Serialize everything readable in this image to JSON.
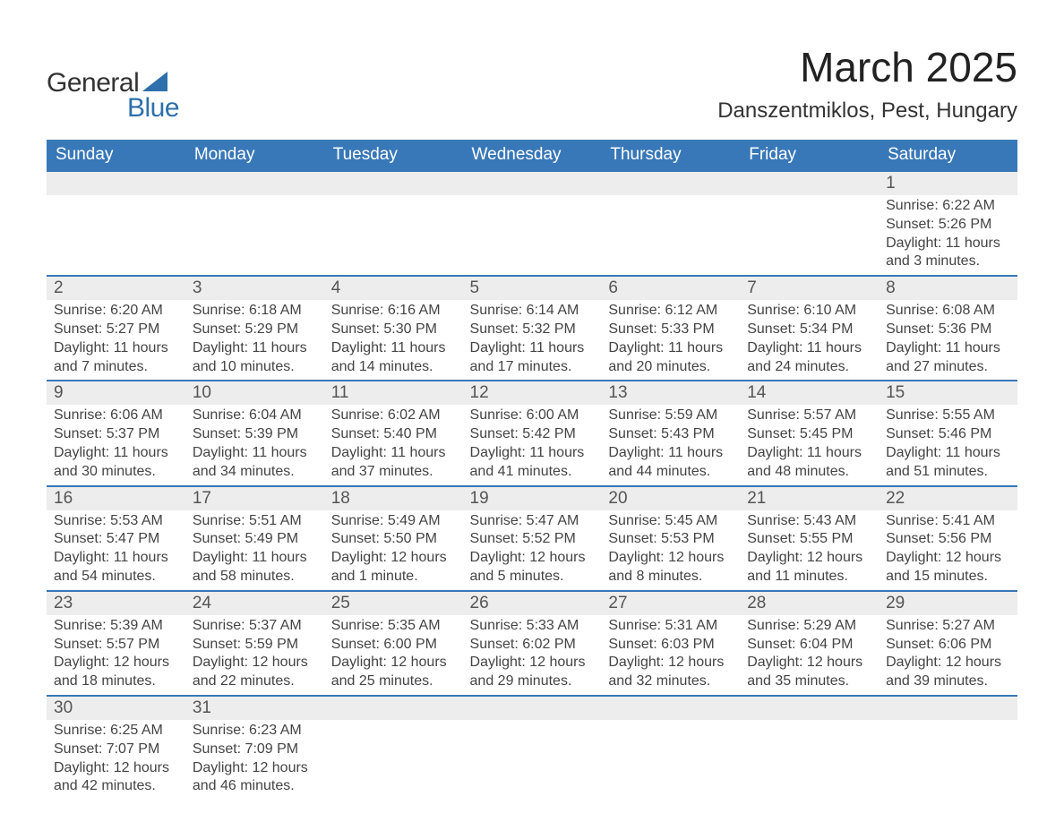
{
  "logo": {
    "word1": "General",
    "word2": "Blue",
    "triangle_color": "#2f6fab"
  },
  "header": {
    "month_title": "March 2025",
    "location": "Danszentmiklos, Pest, Hungary"
  },
  "calendar": {
    "type": "table",
    "columns": [
      "Sunday",
      "Monday",
      "Tuesday",
      "Wednesday",
      "Thursday",
      "Friday",
      "Saturday"
    ],
    "header_bg": "#3878b8",
    "header_text_color": "#ffffff",
    "daynum_bg": "#ededed",
    "row_border_color": "#3878b8",
    "text_color": "#444444",
    "fontsize_header": 19,
    "fontsize_daynum": 19,
    "fontsize_data": 16,
    "weeks": [
      [
        null,
        null,
        null,
        null,
        null,
        null,
        {
          "n": "1",
          "sunrise": "Sunrise: 6:22 AM",
          "sunset": "Sunset: 5:26 PM",
          "daylight1": "Daylight: 11 hours",
          "daylight2": "and 3 minutes."
        }
      ],
      [
        {
          "n": "2",
          "sunrise": "Sunrise: 6:20 AM",
          "sunset": "Sunset: 5:27 PM",
          "daylight1": "Daylight: 11 hours",
          "daylight2": "and 7 minutes."
        },
        {
          "n": "3",
          "sunrise": "Sunrise: 6:18 AM",
          "sunset": "Sunset: 5:29 PM",
          "daylight1": "Daylight: 11 hours",
          "daylight2": "and 10 minutes."
        },
        {
          "n": "4",
          "sunrise": "Sunrise: 6:16 AM",
          "sunset": "Sunset: 5:30 PM",
          "daylight1": "Daylight: 11 hours",
          "daylight2": "and 14 minutes."
        },
        {
          "n": "5",
          "sunrise": "Sunrise: 6:14 AM",
          "sunset": "Sunset: 5:32 PM",
          "daylight1": "Daylight: 11 hours",
          "daylight2": "and 17 minutes."
        },
        {
          "n": "6",
          "sunrise": "Sunrise: 6:12 AM",
          "sunset": "Sunset: 5:33 PM",
          "daylight1": "Daylight: 11 hours",
          "daylight2": "and 20 minutes."
        },
        {
          "n": "7",
          "sunrise": "Sunrise: 6:10 AM",
          "sunset": "Sunset: 5:34 PM",
          "daylight1": "Daylight: 11 hours",
          "daylight2": "and 24 minutes."
        },
        {
          "n": "8",
          "sunrise": "Sunrise: 6:08 AM",
          "sunset": "Sunset: 5:36 PM",
          "daylight1": "Daylight: 11 hours",
          "daylight2": "and 27 minutes."
        }
      ],
      [
        {
          "n": "9",
          "sunrise": "Sunrise: 6:06 AM",
          "sunset": "Sunset: 5:37 PM",
          "daylight1": "Daylight: 11 hours",
          "daylight2": "and 30 minutes."
        },
        {
          "n": "10",
          "sunrise": "Sunrise: 6:04 AM",
          "sunset": "Sunset: 5:39 PM",
          "daylight1": "Daylight: 11 hours",
          "daylight2": "and 34 minutes."
        },
        {
          "n": "11",
          "sunrise": "Sunrise: 6:02 AM",
          "sunset": "Sunset: 5:40 PM",
          "daylight1": "Daylight: 11 hours",
          "daylight2": "and 37 minutes."
        },
        {
          "n": "12",
          "sunrise": "Sunrise: 6:00 AM",
          "sunset": "Sunset: 5:42 PM",
          "daylight1": "Daylight: 11 hours",
          "daylight2": "and 41 minutes."
        },
        {
          "n": "13",
          "sunrise": "Sunrise: 5:59 AM",
          "sunset": "Sunset: 5:43 PM",
          "daylight1": "Daylight: 11 hours",
          "daylight2": "and 44 minutes."
        },
        {
          "n": "14",
          "sunrise": "Sunrise: 5:57 AM",
          "sunset": "Sunset: 5:45 PM",
          "daylight1": "Daylight: 11 hours",
          "daylight2": "and 48 minutes."
        },
        {
          "n": "15",
          "sunrise": "Sunrise: 5:55 AM",
          "sunset": "Sunset: 5:46 PM",
          "daylight1": "Daylight: 11 hours",
          "daylight2": "and 51 minutes."
        }
      ],
      [
        {
          "n": "16",
          "sunrise": "Sunrise: 5:53 AM",
          "sunset": "Sunset: 5:47 PM",
          "daylight1": "Daylight: 11 hours",
          "daylight2": "and 54 minutes."
        },
        {
          "n": "17",
          "sunrise": "Sunrise: 5:51 AM",
          "sunset": "Sunset: 5:49 PM",
          "daylight1": "Daylight: 11 hours",
          "daylight2": "and 58 minutes."
        },
        {
          "n": "18",
          "sunrise": "Sunrise: 5:49 AM",
          "sunset": "Sunset: 5:50 PM",
          "daylight1": "Daylight: 12 hours",
          "daylight2": "and 1 minute."
        },
        {
          "n": "19",
          "sunrise": "Sunrise: 5:47 AM",
          "sunset": "Sunset: 5:52 PM",
          "daylight1": "Daylight: 12 hours",
          "daylight2": "and 5 minutes."
        },
        {
          "n": "20",
          "sunrise": "Sunrise: 5:45 AM",
          "sunset": "Sunset: 5:53 PM",
          "daylight1": "Daylight: 12 hours",
          "daylight2": "and 8 minutes."
        },
        {
          "n": "21",
          "sunrise": "Sunrise: 5:43 AM",
          "sunset": "Sunset: 5:55 PM",
          "daylight1": "Daylight: 12 hours",
          "daylight2": "and 11 minutes."
        },
        {
          "n": "22",
          "sunrise": "Sunrise: 5:41 AM",
          "sunset": "Sunset: 5:56 PM",
          "daylight1": "Daylight: 12 hours",
          "daylight2": "and 15 minutes."
        }
      ],
      [
        {
          "n": "23",
          "sunrise": "Sunrise: 5:39 AM",
          "sunset": "Sunset: 5:57 PM",
          "daylight1": "Daylight: 12 hours",
          "daylight2": "and 18 minutes."
        },
        {
          "n": "24",
          "sunrise": "Sunrise: 5:37 AM",
          "sunset": "Sunset: 5:59 PM",
          "daylight1": "Daylight: 12 hours",
          "daylight2": "and 22 minutes."
        },
        {
          "n": "25",
          "sunrise": "Sunrise: 5:35 AM",
          "sunset": "Sunset: 6:00 PM",
          "daylight1": "Daylight: 12 hours",
          "daylight2": "and 25 minutes."
        },
        {
          "n": "26",
          "sunrise": "Sunrise: 5:33 AM",
          "sunset": "Sunset: 6:02 PM",
          "daylight1": "Daylight: 12 hours",
          "daylight2": "and 29 minutes."
        },
        {
          "n": "27",
          "sunrise": "Sunrise: 5:31 AM",
          "sunset": "Sunset: 6:03 PM",
          "daylight1": "Daylight: 12 hours",
          "daylight2": "and 32 minutes."
        },
        {
          "n": "28",
          "sunrise": "Sunrise: 5:29 AM",
          "sunset": "Sunset: 6:04 PM",
          "daylight1": "Daylight: 12 hours",
          "daylight2": "and 35 minutes."
        },
        {
          "n": "29",
          "sunrise": "Sunrise: 5:27 AM",
          "sunset": "Sunset: 6:06 PM",
          "daylight1": "Daylight: 12 hours",
          "daylight2": "and 39 minutes."
        }
      ],
      [
        {
          "n": "30",
          "sunrise": "Sunrise: 6:25 AM",
          "sunset": "Sunset: 7:07 PM",
          "daylight1": "Daylight: 12 hours",
          "daylight2": "and 42 minutes."
        },
        {
          "n": "31",
          "sunrise": "Sunrise: 6:23 AM",
          "sunset": "Sunset: 7:09 PM",
          "daylight1": "Daylight: 12 hours",
          "daylight2": "and 46 minutes."
        },
        null,
        null,
        null,
        null,
        null
      ]
    ]
  }
}
